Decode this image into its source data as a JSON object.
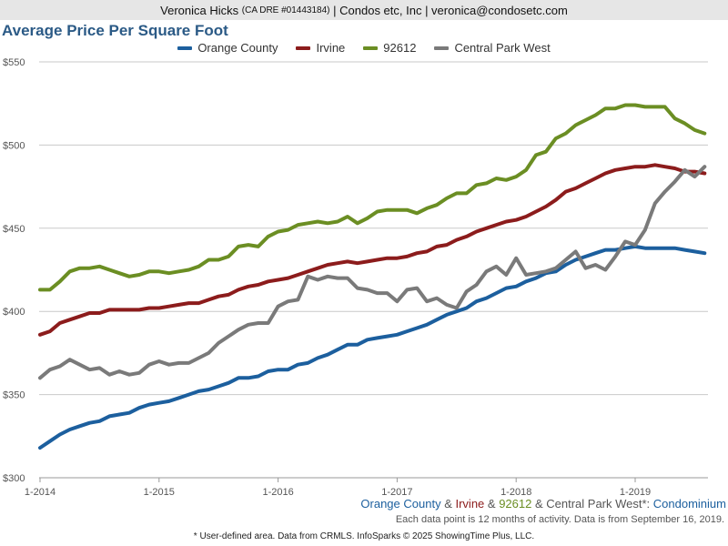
{
  "header": {
    "name": "Veronica Hicks",
    "license": "(CA DRE #01443184)",
    "rest": "| Condos etc, Inc | veronica@condosetc.com"
  },
  "colors": {
    "orange_county": "#1c5f9e",
    "irvine": "#8c1c1c",
    "zip_92612": "#6b8e23",
    "central_park_west": "#7a7a7a",
    "grid": "#c9c9c9",
    "axis_text": "#555555"
  },
  "subtitle": {
    "orange_county": "Orange County",
    "amp1": " & ",
    "irvine": "Irvine",
    "amp2": " & ",
    "zip": "92612",
    "amp3": " & ",
    "cpw": "Central Park West*:",
    "type": " Condominium"
  },
  "activity_note": "Each data point is 12 months of activity. Data is from September 16, 2019.",
  "footer_note": "* User-defined area. Data from CRMLS. InfoSparks © 2025 ShowingTime Plus, LLC.",
  "chart_data": {
    "type": "line",
    "title": "Average Price Per Square Foot",
    "xlabel": "",
    "ylabel": "",
    "x_ticks": [
      "1-2014",
      "1-2015",
      "1-2016",
      "1-2017",
      "1-2018",
      "1-2019"
    ],
    "y_ticks": [
      "$300",
      "$350",
      "$400",
      "$450",
      "$500",
      "$550"
    ],
    "ylim": [
      300,
      550
    ],
    "x_start": "2014-01",
    "x_end": "2019-08",
    "grid": true,
    "legend_position": "top-center",
    "series": [
      {
        "name": "Orange County",
        "color": "#1c5f9e",
        "values": [
          318,
          322,
          326,
          329,
          331,
          333,
          334,
          337,
          338,
          339,
          342,
          344,
          345,
          346,
          348,
          350,
          352,
          353,
          355,
          357,
          360,
          360,
          361,
          364,
          365,
          365,
          368,
          369,
          372,
          374,
          377,
          380,
          380,
          383,
          384,
          385,
          386,
          388,
          390,
          392,
          395,
          398,
          400,
          402,
          406,
          408,
          411,
          414,
          415,
          418,
          420,
          423,
          424,
          428,
          431,
          433,
          435,
          437,
          437,
          438,
          439,
          438,
          438,
          438,
          438,
          437,
          436,
          435
        ]
      },
      {
        "name": "Irvine",
        "color": "#8c1c1c",
        "values": [
          386,
          388,
          393,
          395,
          397,
          399,
          399,
          401,
          401,
          401,
          401,
          402,
          402,
          403,
          404,
          405,
          405,
          407,
          409,
          410,
          413,
          415,
          416,
          418,
          419,
          420,
          422,
          424,
          426,
          428,
          429,
          430,
          429,
          430,
          431,
          432,
          432,
          433,
          435,
          436,
          439,
          440,
          443,
          445,
          448,
          450,
          452,
          454,
          455,
          457,
          460,
          463,
          467,
          472,
          474,
          477,
          480,
          483,
          485,
          486,
          487,
          487,
          488,
          487,
          486,
          484,
          484,
          483
        ]
      },
      {
        "name": "92612",
        "color": "#6b8e23",
        "values": [
          413,
          413,
          418,
          424,
          426,
          426,
          427,
          425,
          423,
          421,
          422,
          424,
          424,
          423,
          424,
          425,
          427,
          431,
          431,
          433,
          439,
          440,
          439,
          445,
          448,
          449,
          452,
          453,
          454,
          453,
          454,
          457,
          453,
          456,
          460,
          461,
          461,
          461,
          459,
          462,
          464,
          468,
          471,
          471,
          476,
          477,
          480,
          479,
          481,
          485,
          494,
          496,
          504,
          507,
          512,
          515,
          518,
          522,
          522,
          524,
          524,
          523,
          523,
          523,
          516,
          513,
          509,
          507
        ]
      },
      {
        "name": "Central Park West",
        "color": "#7a7a7a",
        "values": [
          360,
          365,
          367,
          371,
          368,
          365,
          366,
          362,
          364,
          362,
          363,
          368,
          370,
          368,
          369,
          369,
          372,
          375,
          381,
          385,
          389,
          392,
          393,
          393,
          403,
          406,
          407,
          421,
          419,
          421,
          420,
          420,
          414,
          413,
          411,
          411,
          406,
          413,
          414,
          406,
          408,
          404,
          402,
          412,
          416,
          424,
          427,
          422,
          432,
          422,
          423,
          424,
          426,
          431,
          436,
          426,
          428,
          425,
          433,
          442,
          440,
          449,
          465,
          472,
          478,
          485,
          481,
          487
        ]
      }
    ]
  }
}
